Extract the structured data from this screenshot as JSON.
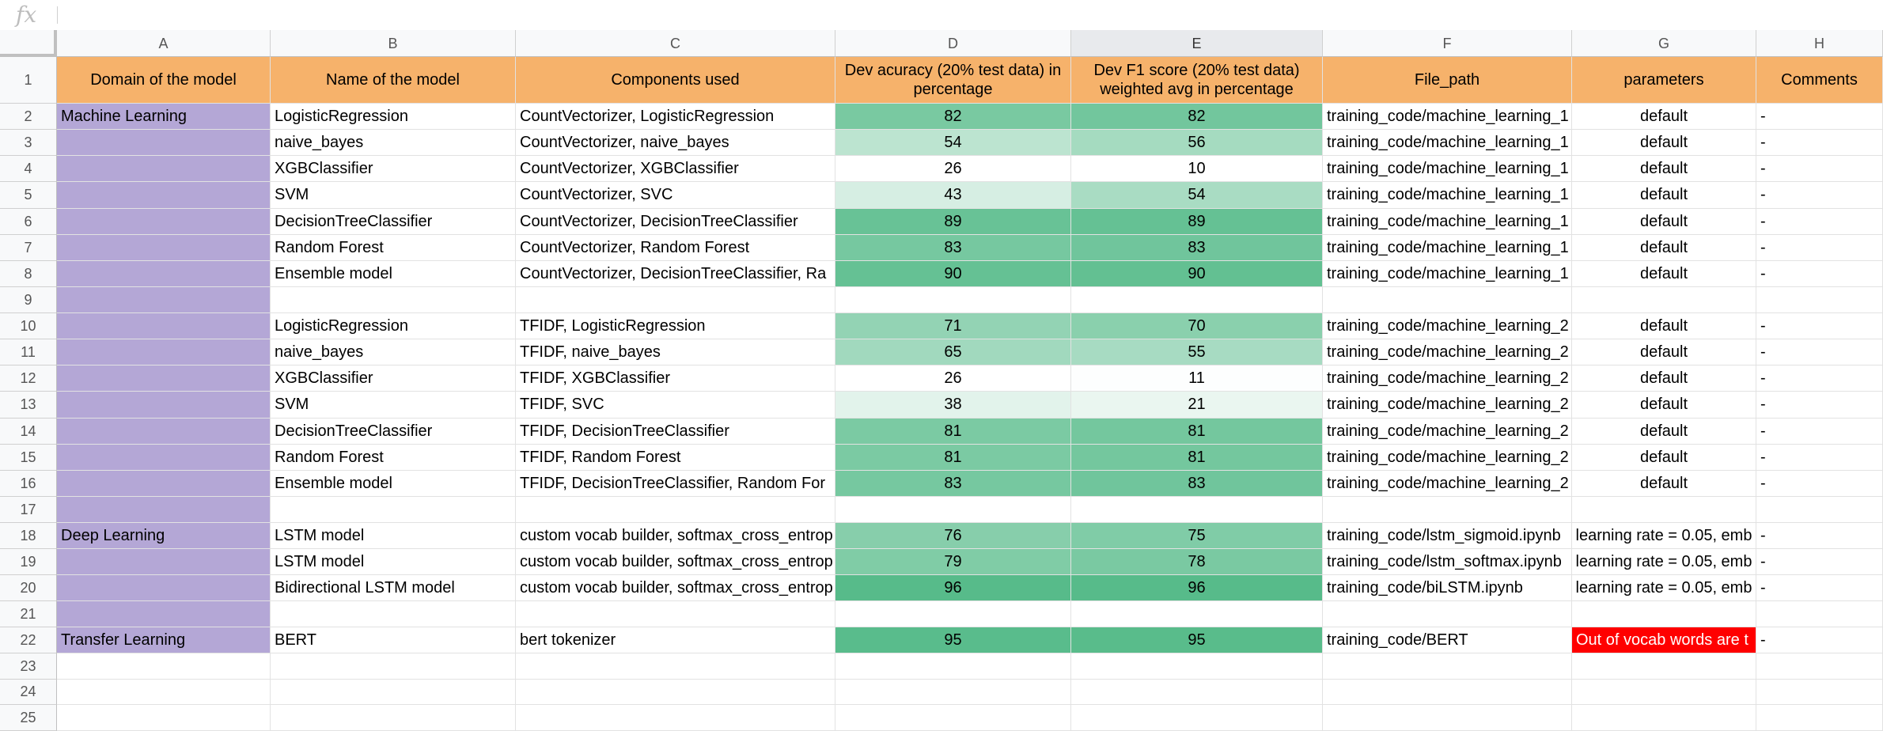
{
  "formula_bar": {
    "icon": "fx",
    "value": ""
  },
  "columns": [
    "A",
    "B",
    "C",
    "D",
    "E",
    "F",
    "G",
    "H"
  ],
  "rows": [
    "1",
    "2",
    "3",
    "4",
    "5",
    "6",
    "7",
    "8",
    "9",
    "10",
    "11",
    "12",
    "13",
    "14",
    "15",
    "16",
    "17",
    "18",
    "19",
    "20",
    "21",
    "22",
    "23",
    "24",
    "25"
  ],
  "header_cells": [
    "Domain of the model",
    "Name of the model",
    "Components used",
    "Dev acuracy (20% test data) in percentage",
    "Dev F1 score (20% test data) weighted avg in percentage",
    "File_path",
    "parameters",
    "Comments"
  ],
  "data_rows": [
    [
      "Machine Learning",
      "LogisticRegression",
      "CountVectorizer, LogisticRegression",
      "82",
      "82",
      "training_code/machine_learning_1",
      "default",
      "-"
    ],
    [
      "",
      "naive_bayes",
      "CountVectorizer, naive_bayes",
      "54",
      "56",
      "training_code/machine_learning_1",
      "default",
      "-"
    ],
    [
      "",
      "XGBClassifier",
      "CountVectorizer, XGBClassifier",
      "26",
      "10",
      "training_code/machine_learning_1",
      "default",
      "-"
    ],
    [
      "",
      "SVM",
      "CountVectorizer, SVC",
      "43",
      "54",
      "training_code/machine_learning_1",
      "default",
      "-"
    ],
    [
      "",
      "DecisionTreeClassifier",
      "CountVectorizer, DecisionTreeClassifier",
      "89",
      "89",
      "training_code/machine_learning_1",
      "default",
      "-"
    ],
    [
      "",
      "Random Forest",
      "CountVectorizer, Random Forest",
      "83",
      "83",
      "training_code/machine_learning_1",
      "default",
      "-"
    ],
    [
      "",
      "Ensemble model",
      "CountVectorizer, DecisionTreeClassifier, Ra",
      "90",
      "90",
      "training_code/machine_learning_1",
      "default",
      "-"
    ],
    [
      "",
      "",
      "",
      "",
      "",
      "",
      "",
      ""
    ],
    [
      "",
      "LogisticRegression",
      "TFIDF, LogisticRegression",
      "71",
      "70",
      "training_code/machine_learning_2",
      "default",
      "-"
    ],
    [
      "",
      "naive_bayes",
      "TFIDF, naive_bayes",
      "65",
      "55",
      "training_code/machine_learning_2",
      "default",
      "-"
    ],
    [
      "",
      "XGBClassifier",
      "TFIDF, XGBClassifier",
      "26",
      "11",
      "training_code/machine_learning_2",
      "default",
      "-"
    ],
    [
      "",
      "SVM",
      "TFIDF, SVC",
      "38",
      "21",
      "training_code/machine_learning_2",
      "default",
      "-"
    ],
    [
      "",
      "DecisionTreeClassifier",
      "TFIDF, DecisionTreeClassifier",
      "81",
      "81",
      "training_code/machine_learning_2",
      "default",
      "-"
    ],
    [
      "",
      "Random Forest",
      "TFIDF, Random Forest",
      "81",
      "81",
      "training_code/machine_learning_2",
      "default",
      "-"
    ],
    [
      "",
      "Ensemble model",
      "TFIDF, DecisionTreeClassifier, Random For",
      "83",
      "83",
      "training_code/machine_learning_2",
      "default",
      "-"
    ],
    [
      "",
      "",
      "",
      "",
      "",
      "",
      "",
      ""
    ],
    [
      "Deep Learning",
      "LSTM model",
      "custom vocab builder, softmax_cross_entrop",
      "76",
      "75",
      "training_code/lstm_sigmoid.ipynb",
      "learning rate = 0.05, emb",
      "-"
    ],
    [
      "",
      "LSTM model",
      "custom vocab builder, softmax_cross_entrop",
      "79",
      "78",
      "training_code/lstm_softmax.ipynb",
      "learning rate = 0.05, emb",
      "-"
    ],
    [
      "",
      "Bidirectional LSTM model",
      "custom vocab builder, softmax_cross_entrop",
      "96",
      "96",
      "training_code/biLSTM.ipynb",
      "learning rate = 0.05, emb",
      "-"
    ],
    [
      "",
      "",
      "",
      "",
      "",
      "",
      "",
      ""
    ],
    [
      "Transfer Learning",
      "BERT",
      "bert tokenizer",
      "95",
      "95",
      "training_code/BERT",
      "Out of vocab words are t",
      "-"
    ],
    [
      "",
      "",
      "",
      "",
      "",
      "",
      "",
      ""
    ],
    [
      "",
      "",
      "",
      "",
      "",
      "",
      "",
      ""
    ],
    [
      "",
      "",
      "",
      "",
      "",
      "",
      "",
      ""
    ]
  ],
  "colors": {
    "header_bg": "#f6b26b",
    "domain_bg": "#b4a7d6",
    "warning_bg": "#ff0000",
    "scale_high": "#57bb8a",
    "scale_low": "#ffffff"
  },
  "heat_d": [
    82,
    54,
    26,
    43,
    89,
    83,
    90,
    null,
    71,
    65,
    26,
    38,
    81,
    81,
    83,
    null,
    76,
    79,
    96,
    null,
    95,
    null,
    null,
    null
  ],
  "heat_e": [
    82,
    56,
    10,
    54,
    89,
    83,
    90,
    null,
    70,
    55,
    11,
    21,
    81,
    81,
    83,
    null,
    75,
    78,
    96,
    null,
    95,
    null,
    null,
    null
  ]
}
